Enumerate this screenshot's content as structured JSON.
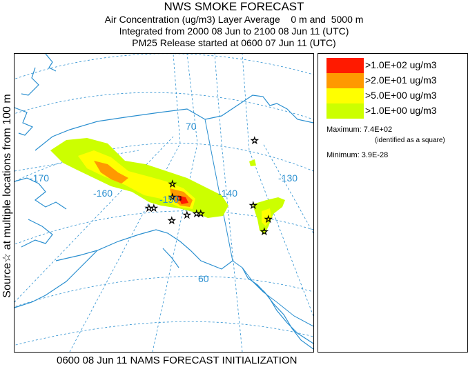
{
  "header": {
    "title": "NWS SMOKE FORECAST",
    "line2": "Air Concentration (ug/m3) Layer Average    0 m and  5000 m",
    "line3": "Integrated from 2000 08 Jun to 2100 08 Jun 11 (UTC)",
    "line4": "PM25 Release started at 0600 07 Jun 11 (UTC)"
  },
  "side_label": "Source☆ at multiple locations   from   100 m",
  "map": {
    "longitude_labels": [
      "-170",
      "-160",
      "-150",
      "-140",
      "-130"
    ],
    "latitude_labels": [
      "70",
      "60"
    ],
    "colors": {
      "coast": "#2a8fd0",
      "grid": "#2a8fd0",
      "border": "#2a8fd0"
    }
  },
  "legend": {
    "items": [
      {
        "label": ">1.0E+02 ug/m3",
        "color": "#ff1a00"
      },
      {
        "label": ">2.0E+01 ug/m3",
        "color": "#ff9900"
      },
      {
        "label": ">5.0E+00 ug/m3",
        "color": "#ffff00"
      },
      {
        "label": ">1.0E+00 ug/m3",
        "color": "#ccff00"
      }
    ],
    "maximum_label": "Maximum: 7.4E+02",
    "maximum_note": "(identified as a square)",
    "minimum_label": "Minimum: 3.9E-28"
  },
  "footer": "0600 08 Jun 11 NAMS FORECAST INITIALIZATION"
}
